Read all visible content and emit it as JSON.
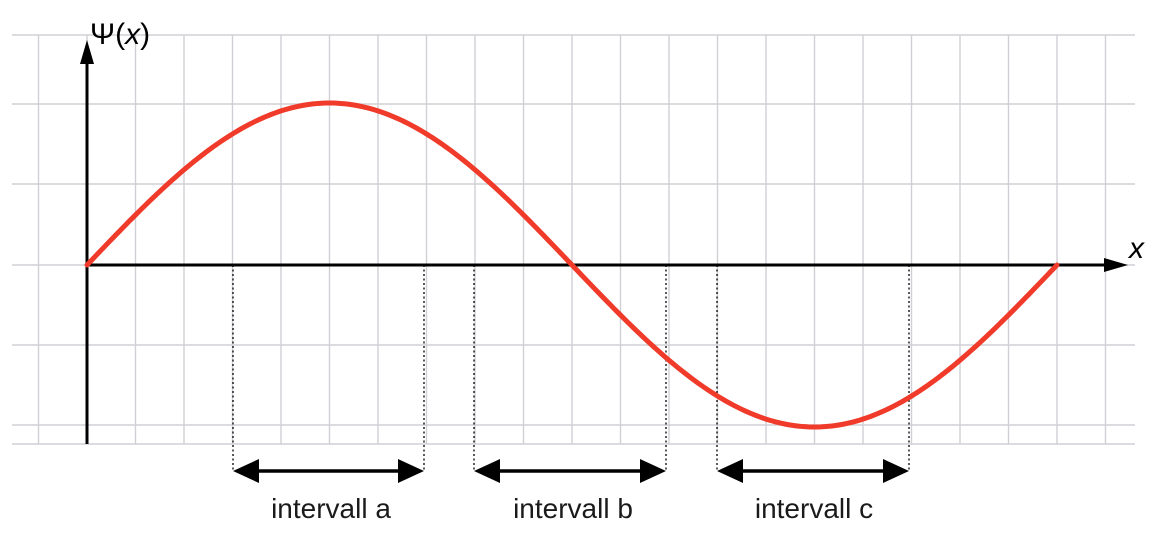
{
  "figure": {
    "y_axis_label": {
      "psi": "Ψ",
      "open": "(",
      "var": "x",
      "close": ")"
    },
    "x_axis_label": "x",
    "curve_color": "#f03a2a",
    "grid_color": "#cfcfd6",
    "intervals": [
      {
        "id": "a",
        "label": "intervall a"
      },
      {
        "id": "b",
        "label": "intervall b"
      },
      {
        "id": "c",
        "label": "intervall c"
      }
    ]
  }
}
